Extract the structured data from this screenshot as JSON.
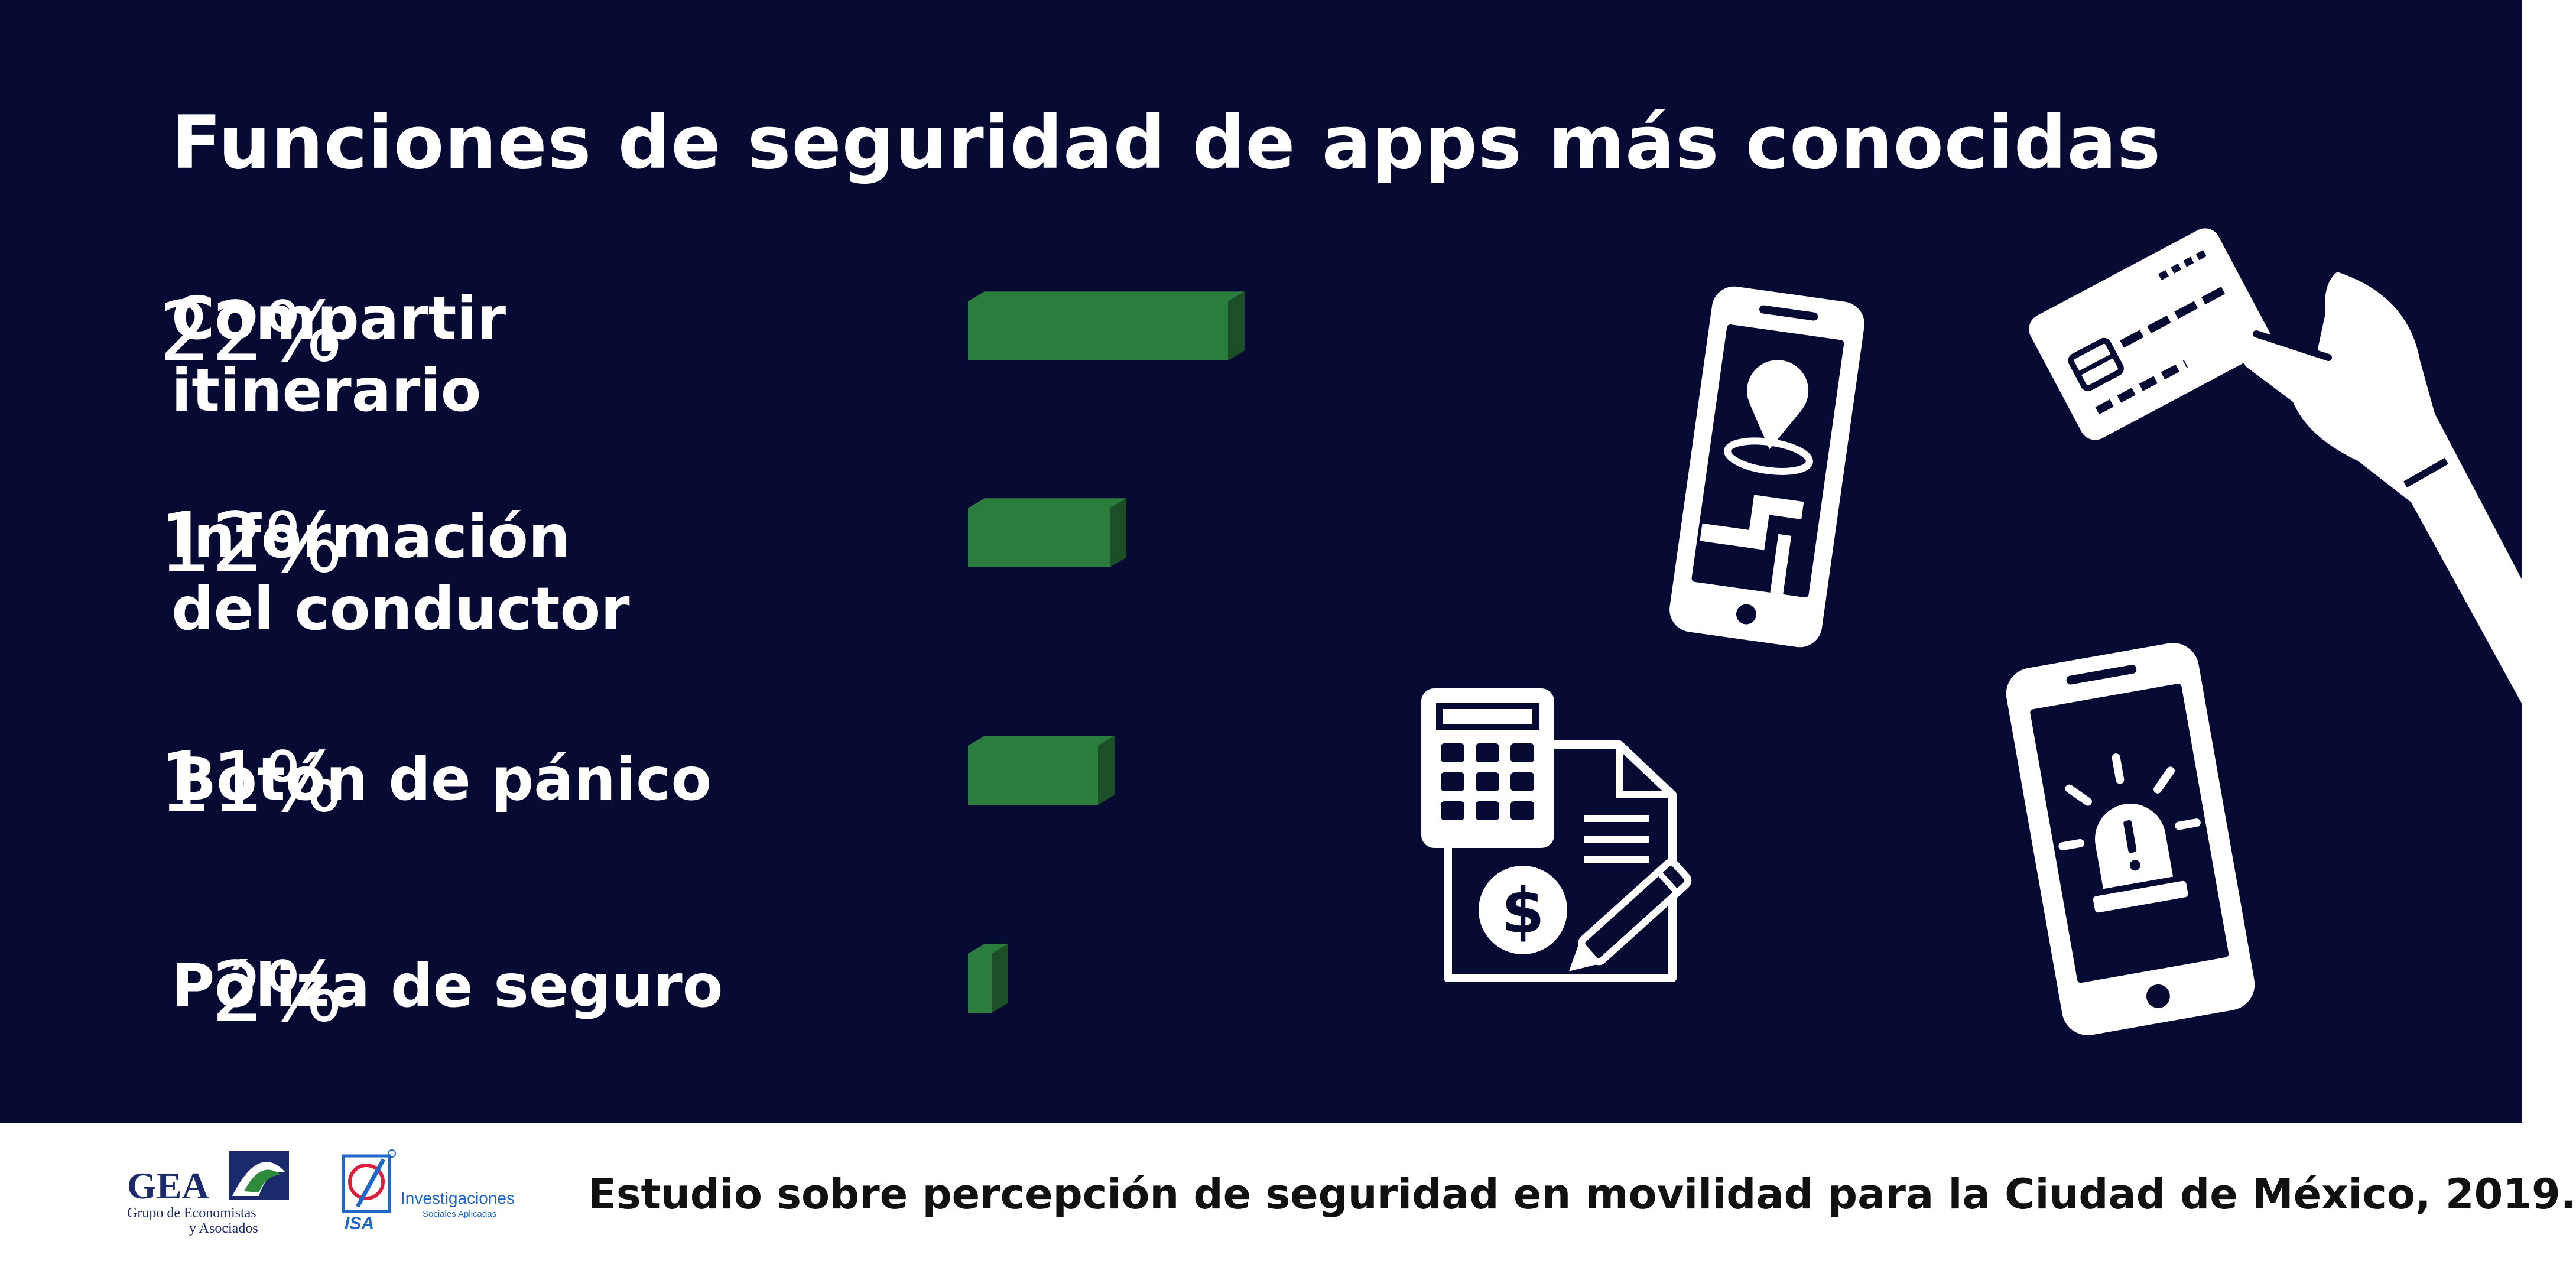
{
  "chart_data": {
    "type": "bar",
    "orientation": "horizontal",
    "title": "Funciones de seguridad de apps más conocidas",
    "categories": [
      [
        "Compartir",
        "itinerario"
      ],
      [
        "Información",
        "del conductor"
      ],
      [
        "Botón de pánico"
      ],
      [
        "Póliza de seguro"
      ]
    ],
    "values": [
      22,
      12,
      11,
      2
    ],
    "value_labels": [
      "22%",
      "12%",
      "11%",
      "2%"
    ],
    "unit": "%",
    "bar_color": "#2a7d3c",
    "bar_shadow_color": "#1c4f28",
    "grid": false
  },
  "background_color": "#070a33",
  "footer": {
    "source": "Estudio sobre percepción de seguridad en movilidad para la Ciudad de México, 2019."
  },
  "logos": {
    "gea": {
      "name": "GEA",
      "line1": "Grupo de Economistas",
      "line2": "y Asociados"
    },
    "isa": {
      "abbr": "ISA",
      "line1": "Investigaciones",
      "line2": "Sociales Aplicadas"
    }
  },
  "icons": [
    "smartphone-location-icon",
    "credit-card-hand-icon",
    "calculator-invoice-icon",
    "smartphone-alarm-icon"
  ]
}
